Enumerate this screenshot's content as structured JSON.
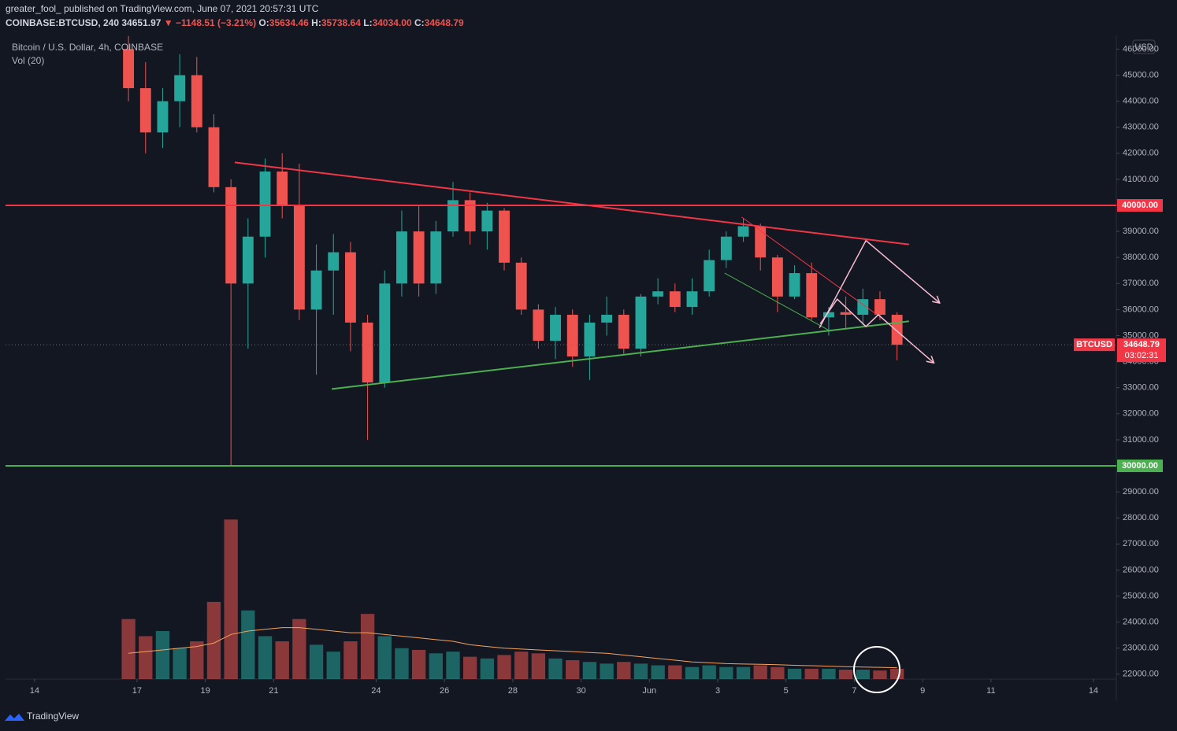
{
  "header": {
    "publisher": "greater_fool_ published on TradingView.com, June 07, 2021 20:57:31 UTC",
    "symbol": "COINBASE:BTCUSD, 240",
    "price": "34651.97",
    "change": "▼ −1148.51 (−3.21%)",
    "ohlc": [
      {
        "label": "O:",
        "value": "35634.46"
      },
      {
        "label": "H:",
        "value": "35738.64"
      },
      {
        "label": "L:",
        "value": "34034.00"
      },
      {
        "label": "C:",
        "value": "34648.79"
      }
    ],
    "legend": "Bitcoin / U.S. Dollar, 4h, COINBASE",
    "volume_legend": "Vol (20)",
    "currency": "USD"
  },
  "footer": {
    "brand": "TradingView"
  },
  "chart_data": {
    "type": "candlestick",
    "up_color": "#26a69a",
    "down_color": "#ef5350",
    "x": [
      2.75,
      3.25,
      3.75,
      4.25,
      4.75,
      5.25,
      5.75,
      6.25,
      6.75,
      7.25,
      7.75,
      8.25,
      8.75,
      9.25,
      9.75,
      10.25,
      10.75,
      11.25,
      11.75,
      12.25,
      12.75,
      13.25,
      13.75,
      14.25,
      14.75,
      15.25,
      15.75,
      16.25,
      16.75,
      17.25,
      17.75,
      18.25,
      18.75,
      19.25,
      19.75,
      20.25,
      20.75,
      21.25,
      21.75,
      22.25,
      22.75,
      23.25,
      23.75,
      24.25,
      24.75,
      25.25
    ],
    "open": [
      46000,
      44500,
      42800,
      44000,
      45000,
      43000,
      40700,
      37000,
      38800,
      41300,
      40000,
      36000,
      37500,
      38200,
      35500,
      33200,
      37000,
      39000,
      37000,
      39000,
      40200,
      39000,
      39800,
      37800,
      36000,
      34800,
      35800,
      34200,
      35500,
      35800,
      34500,
      36500,
      36700,
      36100,
      36700,
      37900,
      38800,
      39200,
      38000,
      36500,
      37400,
      35700,
      35900,
      35800,
      36400,
      35800
    ],
    "high": [
      46500,
      45500,
      44500,
      45800,
      45700,
      43500,
      41000,
      39500,
      41800,
      42000,
      41600,
      38500,
      38900,
      38600,
      35800,
      37500,
      39800,
      40000,
      39400,
      40900,
      40500,
      40100,
      39900,
      38000,
      36200,
      36100,
      36000,
      35800,
      36500,
      36000,
      36600,
      37200,
      37000,
      37200,
      38300,
      39000,
      39500,
      39300,
      38100,
      37700,
      37800,
      36100,
      36500,
      36800,
      36700,
      35900
    ],
    "low": [
      44000,
      42000,
      42200,
      43000,
      42800,
      40500,
      30000,
      34500,
      38000,
      39500,
      35600,
      33500,
      35800,
      34400,
      31000,
      33000,
      36500,
      36500,
      36600,
      38800,
      38500,
      38300,
      37500,
      35800,
      34500,
      34100,
      33800,
      33300,
      35000,
      34300,
      34200,
      36200,
      35900,
      35800,
      36500,
      37600,
      38600,
      37500,
      35900,
      36400,
      35600,
      35000,
      35300,
      35400,
      35600,
      34050
    ],
    "close": [
      44500,
      42800,
      44000,
      45000,
      43000,
      40700,
      37000,
      38800,
      41300,
      40000,
      36000,
      37500,
      38200,
      35500,
      33200,
      37000,
      39000,
      37000,
      39000,
      40200,
      39000,
      39800,
      37800,
      36000,
      34800,
      35800,
      34200,
      35500,
      35800,
      34500,
      36500,
      36700,
      36100,
      36700,
      37900,
      38800,
      39200,
      38000,
      36500,
      37400,
      35700,
      35900,
      35800,
      36400,
      35800,
      34649
    ],
    "volume": [
      350,
      250,
      280,
      180,
      220,
      450,
      930,
      400,
      250,
      220,
      350,
      200,
      160,
      220,
      380,
      250,
      180,
      170,
      150,
      160,
      130,
      120,
      140,
      160,
      150,
      120,
      110,
      100,
      90,
      100,
      90,
      80,
      80,
      70,
      80,
      70,
      70,
      80,
      70,
      60,
      60,
      60,
      55,
      55,
      50,
      60
    ],
    "volume_ma": [
      150,
      160,
      170,
      180,
      190,
      210,
      260,
      280,
      290,
      300,
      300,
      290,
      280,
      270,
      270,
      260,
      250,
      240,
      230,
      220,
      200,
      190,
      180,
      175,
      170,
      165,
      160,
      155,
      150,
      140,
      130,
      120,
      110,
      100,
      95,
      90,
      88,
      86,
      84,
      80,
      78,
      75,
      72,
      70,
      68,
      66
    ],
    "volume_ylim": [
      0,
      1000
    ],
    "volume_color": "#f7a35c",
    "xlim": [
      -0.85,
      31.67
    ],
    "ylim": [
      21813,
      46526
    ],
    "xticks": [
      {
        "value": 0,
        "label": "14"
      },
      {
        "value": 3,
        "label": "17"
      },
      {
        "value": 5,
        "label": "19"
      },
      {
        "value": 7,
        "label": "21"
      },
      {
        "value": 10,
        "label": "24"
      },
      {
        "value": 12,
        "label": "26"
      },
      {
        "value": 14,
        "label": "28"
      },
      {
        "value": 16,
        "label": "30"
      },
      {
        "value": 18,
        "label": "Jun"
      },
      {
        "value": 20,
        "label": "3"
      },
      {
        "value": 22,
        "label": "5"
      },
      {
        "value": 24,
        "label": "7"
      },
      {
        "value": 26,
        "label": "9"
      },
      {
        "value": 28,
        "label": "11"
      },
      {
        "value": 31,
        "label": "14"
      }
    ],
    "yticks": [
      {
        "value": 22000,
        "label": "22000.00"
      },
      {
        "value": 23000,
        "label": "23000.00"
      },
      {
        "value": 24000,
        "label": "24000.00"
      },
      {
        "value": 25000,
        "label": "25000.00"
      },
      {
        "value": 26000,
        "label": "26000.00"
      },
      {
        "value": 27000,
        "label": "27000.00"
      },
      {
        "value": 28000,
        "label": "28000.00"
      },
      {
        "value": 29000,
        "label": "29000.00"
      },
      {
        "value": 31000,
        "label": "31000.00"
      },
      {
        "value": 32000,
        "label": "32000.00"
      },
      {
        "value": 33000,
        "label": "33000.00"
      },
      {
        "value": 34000,
        "label": "34000.00"
      },
      {
        "value": 35000,
        "label": "35000.00"
      },
      {
        "value": 36000,
        "label": "36000.00"
      },
      {
        "value": 37000,
        "label": "37000.00"
      },
      {
        "value": 38000,
        "label": "38000.00"
      },
      {
        "value": 39000,
        "label": "39000.00"
      },
      {
        "value": 41000,
        "label": "41000.00"
      },
      {
        "value": 42000,
        "label": "42000.00"
      },
      {
        "value": 43000,
        "label": "43000.00"
      },
      {
        "value": 44000,
        "label": "44000.00"
      },
      {
        "value": 45000,
        "label": "45000.00"
      },
      {
        "value": 46000,
        "label": "46000.00"
      }
    ],
    "hlines": [
      {
        "value": 40000,
        "label": "40000.00",
        "color": "#f23645"
      },
      {
        "value": 30000,
        "label": "30000.00",
        "color": "#4caf50"
      }
    ],
    "last_price": {
      "value": 34648.79,
      "label": "34648.79",
      "symbol": "BTCUSD",
      "countdown": "03:02:31",
      "color": "#f23645"
    },
    "drawings": [
      {
        "color": "#f23645",
        "width": 2,
        "points": [
          [
            5.86,
            41650
          ],
          [
            25.6,
            38500
          ]
        ]
      },
      {
        "color": "#4caf50",
        "width": 2,
        "points": [
          [
            8.7,
            32950
          ],
          [
            25.6,
            35550
          ]
        ]
      },
      {
        "color": "#f23645",
        "width": 1,
        "points": [
          [
            20.7,
            39550
          ],
          [
            24.7,
            35770
          ]
        ]
      },
      {
        "color": "#4caf50",
        "width": 1,
        "points": [
          [
            20.2,
            37400
          ],
          [
            23.3,
            35170
          ]
        ]
      },
      {
        "color": "#f8bbd0",
        "width": 1.5,
        "arrow": true,
        "points": [
          [
            22.98,
            35300
          ],
          [
            24.34,
            38650
          ],
          [
            26.5,
            36250
          ]
        ]
      },
      {
        "color": "#f8bbd0",
        "width": 1.5,
        "arrow": true,
        "points": [
          [
            23.0,
            35450
          ],
          [
            23.5,
            36400
          ],
          [
            24.34,
            35350
          ],
          [
            24.7,
            35800
          ],
          [
            26.33,
            33950
          ]
        ]
      }
    ]
  }
}
